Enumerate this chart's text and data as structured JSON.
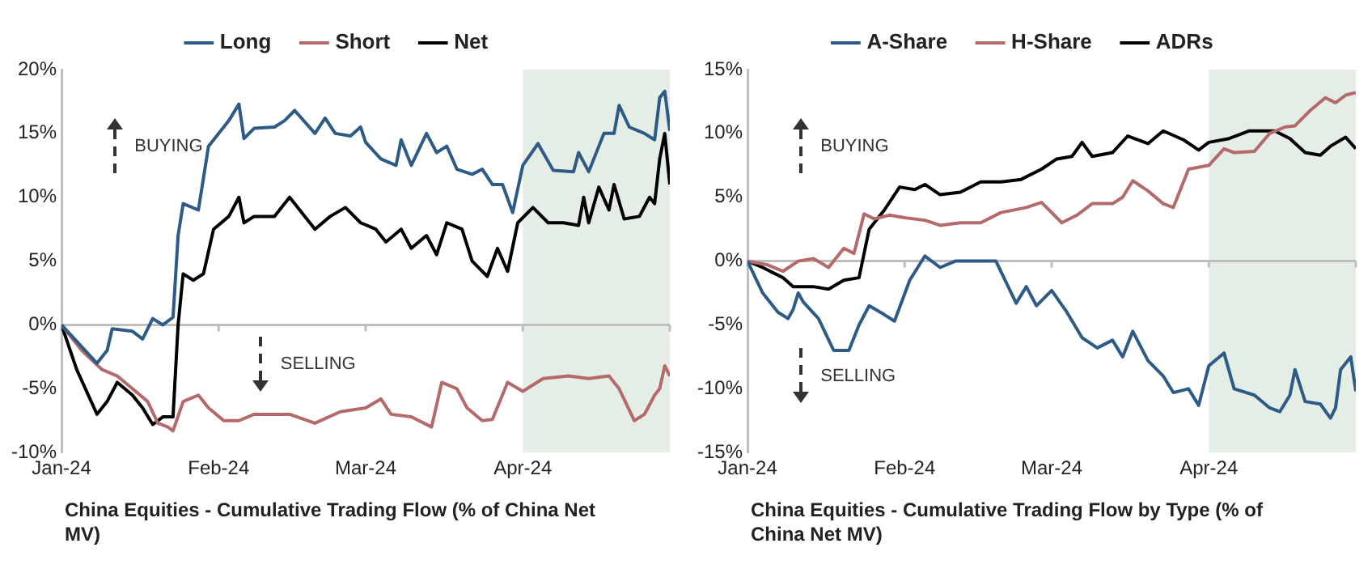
{
  "chart_data": [
    {
      "type": "line",
      "title": "China Equities - Cumulative Trading Flow (% of China Net MV)",
      "legend": "top",
      "grid": false,
      "marker": "none",
      "line_style": "solid",
      "xlim": [
        "2024-01-01",
        "2024-04-30"
      ],
      "xticks": [
        {
          "value": "2024-01-01",
          "label": "Jan-24"
        },
        {
          "value": "2024-02-01",
          "label": "Feb-24"
        },
        {
          "value": "2024-03-01",
          "label": "Mar-24"
        },
        {
          "value": "2024-04-01",
          "label": "Apr-24"
        },
        {
          "value": "2024-04-30",
          "label": null
        }
      ],
      "ylim": [
        -10,
        20
      ],
      "yticks": [
        {
          "value": -10,
          "label": "-10%"
        },
        {
          "value": -5,
          "label": "-5%"
        },
        {
          "value": 0,
          "label": "0%"
        },
        {
          "value": 5,
          "label": "5%"
        },
        {
          "value": 10,
          "label": "10%"
        },
        {
          "value": 15,
          "label": "15%"
        },
        {
          "value": 20,
          "label": "20%"
        }
      ],
      "bands": [
        {
          "axis": "x",
          "from": "2024-04-01",
          "to": "2024-04-30",
          "color": "#e4ede6"
        }
      ],
      "ref_lines": [
        {
          "axis": "y",
          "value": 0,
          "color": "#bfbfbf"
        }
      ],
      "annotations": [
        "BUYING",
        "SELLING"
      ],
      "series": [
        {
          "name": "Long",
          "color": "#2e5b86",
          "x": [
            "2024-01-01",
            "2024-01-08",
            "2024-01-10",
            "2024-01-11",
            "2024-01-15",
            "2024-01-17",
            "2024-01-19",
            "2024-01-21",
            "2024-01-23",
            "2024-01-24",
            "2024-01-25",
            "2024-01-28",
            "2024-01-30",
            "2024-02-03",
            "2024-02-05",
            "2024-02-06",
            "2024-02-08",
            "2024-02-12",
            "2024-02-14",
            "2024-02-16",
            "2024-02-20",
            "2024-02-22",
            "2024-02-24",
            "2024-02-27",
            "2024-02-29",
            "2024-03-01",
            "2024-03-04",
            "2024-03-07",
            "2024-03-08",
            "2024-03-10",
            "2024-03-13",
            "2024-03-15",
            "2024-03-17",
            "2024-03-19",
            "2024-03-22",
            "2024-03-24",
            "2024-03-26",
            "2024-03-28",
            "2024-03-30",
            "2024-04-01",
            "2024-04-04",
            "2024-04-07",
            "2024-04-11",
            "2024-04-12",
            "2024-04-14",
            "2024-04-17",
            "2024-04-19",
            "2024-04-20",
            "2024-04-22",
            "2024-04-25",
            "2024-04-27",
            "2024-04-28",
            "2024-04-29",
            "2024-04-30"
          ],
          "values": [
            0,
            -3,
            -2,
            -0.3,
            -0.5,
            -1.1,
            0.5,
            0,
            0.6,
            7,
            9.5,
            9,
            14,
            16,
            17.3,
            14.6,
            15.4,
            15.5,
            16,
            16.8,
            15,
            16.2,
            15,
            14.8,
            15.5,
            14.3,
            13,
            12.5,
            14.5,
            12.5,
            15,
            13.5,
            14,
            12.2,
            11.8,
            12.2,
            11,
            11,
            8.8,
            12.5,
            14.2,
            12.1,
            12,
            13.5,
            12,
            15,
            15,
            17.2,
            15.5,
            15,
            14.5,
            17.8,
            18.3,
            15.2
          ]
        },
        {
          "name": "Short",
          "color": "#b46a6a",
          "x": [
            "2024-01-01",
            "2024-01-05",
            "2024-01-09",
            "2024-01-12",
            "2024-01-15",
            "2024-01-18",
            "2024-01-20",
            "2024-01-22",
            "2024-01-23",
            "2024-01-25",
            "2024-01-28",
            "2024-01-30",
            "2024-02-02",
            "2024-02-05",
            "2024-02-08",
            "2024-02-15",
            "2024-02-20",
            "2024-02-25",
            "2024-03-01",
            "2024-03-04",
            "2024-03-06",
            "2024-03-10",
            "2024-03-14",
            "2024-03-16",
            "2024-03-19",
            "2024-03-21",
            "2024-03-24",
            "2024-03-26",
            "2024-03-29",
            "2024-04-01",
            "2024-04-05",
            "2024-04-10",
            "2024-04-14",
            "2024-04-18",
            "2024-04-20",
            "2024-04-23",
            "2024-04-25",
            "2024-04-27",
            "2024-04-28",
            "2024-04-29",
            "2024-04-30"
          ],
          "values": [
            0,
            -2,
            -3.5,
            -4,
            -5,
            -6,
            -7.7,
            -8,
            -8.3,
            -6,
            -5.5,
            -6.5,
            -7.5,
            -7.5,
            -7,
            -7,
            -7.7,
            -6.8,
            -6.5,
            -5.8,
            -7,
            -7.2,
            -8,
            -4.5,
            -5,
            -6.5,
            -7.5,
            -7.4,
            -4.5,
            -5.2,
            -4.2,
            -4,
            -4.2,
            -4,
            -5,
            -7.5,
            -7,
            -5.5,
            -5,
            -3.2,
            -4
          ]
        },
        {
          "name": "Net",
          "color": "#000000",
          "x": [
            "2024-01-01",
            "2024-01-04",
            "2024-01-08",
            "2024-01-10",
            "2024-01-12",
            "2024-01-15",
            "2024-01-17",
            "2024-01-19",
            "2024-01-21",
            "2024-01-23",
            "2024-01-24",
            "2024-01-25",
            "2024-01-27",
            "2024-01-29",
            "2024-01-31",
            "2024-02-03",
            "2024-02-05",
            "2024-02-06",
            "2024-02-08",
            "2024-02-12",
            "2024-02-15",
            "2024-02-18",
            "2024-02-20",
            "2024-02-23",
            "2024-02-26",
            "2024-02-29",
            "2024-03-03",
            "2024-03-05",
            "2024-03-08",
            "2024-03-10",
            "2024-03-13",
            "2024-03-15",
            "2024-03-17",
            "2024-03-20",
            "2024-03-22",
            "2024-03-25",
            "2024-03-27",
            "2024-03-29",
            "2024-03-31",
            "2024-04-03",
            "2024-04-06",
            "2024-04-09",
            "2024-04-12",
            "2024-04-13",
            "2024-04-14",
            "2024-04-16",
            "2024-04-18",
            "2024-04-19",
            "2024-04-21",
            "2024-04-24",
            "2024-04-26",
            "2024-04-27",
            "2024-04-28",
            "2024-04-29",
            "2024-04-30"
          ],
          "values": [
            0,
            -3.5,
            -7,
            -6,
            -4.5,
            -5.5,
            -6.5,
            -7.8,
            -7.2,
            -7.2,
            0,
            4,
            3.5,
            4,
            7.5,
            8.5,
            10,
            8,
            8.5,
            8.5,
            10,
            8.5,
            7.5,
            8.5,
            9.2,
            8,
            7.5,
            6.5,
            7.5,
            6,
            7,
            5.5,
            8,
            7.5,
            5,
            3.8,
            6,
            4.2,
            8,
            9.2,
            8,
            8,
            7.8,
            10,
            8,
            10.8,
            9,
            11,
            8.3,
            8.5,
            10,
            9.5,
            13,
            15,
            11
          ]
        }
      ]
    },
    {
      "type": "line",
      "title": "China Equities - Cumulative Trading Flow by Type (% of China Net MV)",
      "legend": "top",
      "grid": false,
      "marker": "none",
      "line_style": "solid",
      "xlim": [
        "2024-01-01",
        "2024-04-30"
      ],
      "xticks": [
        {
          "value": "2024-01-01",
          "label": "Jan-24"
        },
        {
          "value": "2024-02-01",
          "label": "Feb-24"
        },
        {
          "value": "2024-03-01",
          "label": "Mar-24"
        },
        {
          "value": "2024-04-01",
          "label": "Apr-24"
        },
        {
          "value": "2024-04-30",
          "label": null
        }
      ],
      "ylim": [
        -15,
        15
      ],
      "yticks": [
        {
          "value": -15,
          "label": "-15%"
        },
        {
          "value": -10,
          "label": "-10%"
        },
        {
          "value": -5,
          "label": "-5%"
        },
        {
          "value": 0,
          "label": "0%"
        },
        {
          "value": 5,
          "label": "5%"
        },
        {
          "value": 10,
          "label": "10%"
        },
        {
          "value": 15,
          "label": "15%"
        }
      ],
      "bands": [
        {
          "axis": "x",
          "from": "2024-04-01",
          "to": "2024-04-30",
          "color": "#e4ede6"
        }
      ],
      "ref_lines": [
        {
          "axis": "y",
          "value": 0,
          "color": "#bfbfbf"
        }
      ],
      "annotations": [
        "BUYING",
        "SELLING"
      ],
      "series": [
        {
          "name": "A-Share",
          "color": "#2e5b86",
          "x": [
            "2024-01-01",
            "2024-01-04",
            "2024-01-07",
            "2024-01-09",
            "2024-01-10",
            "2024-01-11",
            "2024-01-12",
            "2024-01-15",
            "2024-01-18",
            "2024-01-21",
            "2024-01-23",
            "2024-01-25",
            "2024-01-28",
            "2024-01-30",
            "2024-02-02",
            "2024-02-05",
            "2024-02-08",
            "2024-02-11",
            "2024-02-15",
            "2024-02-19",
            "2024-02-23",
            "2024-02-25",
            "2024-02-27",
            "2024-03-01",
            "2024-03-04",
            "2024-03-07",
            "2024-03-10",
            "2024-03-13",
            "2024-03-15",
            "2024-03-17",
            "2024-03-20",
            "2024-03-23",
            "2024-03-25",
            "2024-03-28",
            "2024-03-30",
            "2024-04-01",
            "2024-04-04",
            "2024-04-06",
            "2024-04-10",
            "2024-04-13",
            "2024-04-15",
            "2024-04-17",
            "2024-04-18",
            "2024-04-20",
            "2024-04-23",
            "2024-04-25",
            "2024-04-26",
            "2024-04-27",
            "2024-04-29",
            "2024-04-30"
          ],
          "values": [
            0,
            -2.5,
            -4,
            -4.5,
            -3.8,
            -2.5,
            -3.2,
            -4.5,
            -7,
            -7,
            -5,
            -3.5,
            -4.2,
            -4.7,
            -1.5,
            0.4,
            -0.5,
            0,
            0,
            0,
            -3.3,
            -2,
            -3.5,
            -2.3,
            -4,
            -6,
            -6.8,
            -6.2,
            -7.5,
            -5.5,
            -7.8,
            -9,
            -10.3,
            -10,
            -11.3,
            -8.2,
            -7.2,
            -10,
            -10.5,
            -11.5,
            -11.8,
            -10.5,
            -8.5,
            -11,
            -11.2,
            -12.3,
            -11.5,
            -8.5,
            -7.5,
            -10.2
          ]
        },
        {
          "name": "H-Share",
          "color": "#b46a6a",
          "x": [
            "2024-01-01",
            "2024-01-05",
            "2024-01-08",
            "2024-01-11",
            "2024-01-14",
            "2024-01-17",
            "2024-01-20",
            "2024-01-22",
            "2024-01-24",
            "2024-01-26",
            "2024-01-29",
            "2024-02-01",
            "2024-02-05",
            "2024-02-08",
            "2024-02-12",
            "2024-02-16",
            "2024-02-20",
            "2024-02-25",
            "2024-02-28",
            "2024-03-03",
            "2024-03-06",
            "2024-03-09",
            "2024-03-13",
            "2024-03-15",
            "2024-03-17",
            "2024-03-20",
            "2024-03-23",
            "2024-03-25",
            "2024-03-28",
            "2024-04-01",
            "2024-04-04",
            "2024-04-06",
            "2024-04-10",
            "2024-04-13",
            "2024-04-16",
            "2024-04-18",
            "2024-04-21",
            "2024-04-24",
            "2024-04-26",
            "2024-04-28",
            "2024-04-30"
          ],
          "values": [
            0,
            -0.3,
            -0.8,
            0,
            0.2,
            -0.5,
            1,
            0.6,
            3.7,
            3.3,
            3.6,
            3.4,
            3.2,
            2.8,
            3,
            3,
            3.8,
            4.2,
            4.6,
            3,
            3.6,
            4.5,
            4.5,
            5,
            6.3,
            5.5,
            4.5,
            4.2,
            7.2,
            7.5,
            8.8,
            8.5,
            8.6,
            10,
            10.5,
            10.6,
            11.8,
            12.8,
            12.4,
            13,
            13.2
          ]
        },
        {
          "name": "ADRs",
          "color": "#000000",
          "x": [
            "2024-01-01",
            "2024-01-04",
            "2024-01-08",
            "2024-01-10",
            "2024-01-14",
            "2024-01-17",
            "2024-01-20",
            "2024-01-23",
            "2024-01-25",
            "2024-01-28",
            "2024-01-31",
            "2024-02-03",
            "2024-02-05",
            "2024-02-08",
            "2024-02-12",
            "2024-02-16",
            "2024-02-20",
            "2024-02-24",
            "2024-02-28",
            "2024-03-02",
            "2024-03-05",
            "2024-03-07",
            "2024-03-09",
            "2024-03-13",
            "2024-03-16",
            "2024-03-20",
            "2024-03-23",
            "2024-03-27",
            "2024-03-30",
            "2024-04-01",
            "2024-04-05",
            "2024-04-09",
            "2024-04-14",
            "2024-04-17",
            "2024-04-20",
            "2024-04-23",
            "2024-04-25",
            "2024-04-28",
            "2024-04-30"
          ],
          "values": [
            0,
            -0.5,
            -1.3,
            -2,
            -2,
            -2.2,
            -1.5,
            -1.3,
            2.5,
            4,
            5.8,
            5.6,
            6,
            5.2,
            5.4,
            6.2,
            6.2,
            6.4,
            7.2,
            8,
            8.2,
            9.3,
            8.2,
            8.5,
            9.8,
            9.2,
            10.2,
            9.5,
            8.7,
            9.3,
            9.6,
            10.2,
            10.2,
            9.6,
            8.5,
            8.3,
            9,
            9.7,
            8.8
          ]
        }
      ]
    }
  ]
}
